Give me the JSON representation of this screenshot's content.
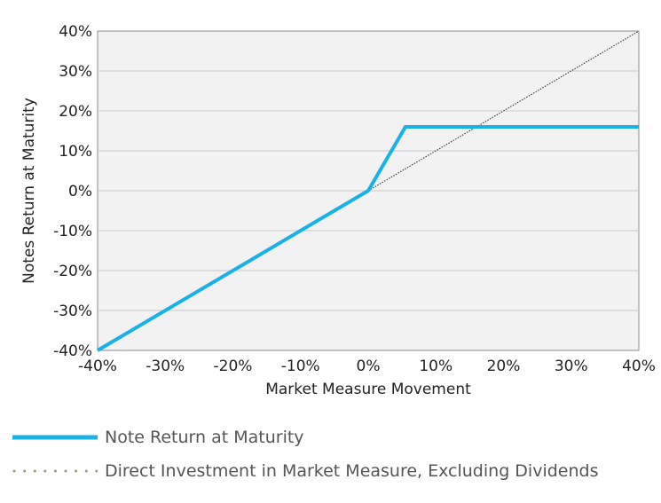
{
  "chart_data": {
    "type": "line",
    "xlabel": "Market Measure Movement",
    "ylabel": "Notes Return at Maturity",
    "xlim": [
      -40,
      40
    ],
    "ylim": [
      -40,
      40
    ],
    "x_ticks": [
      "-40%",
      "-30%",
      "-20%",
      "-10%",
      "0%",
      "10%",
      "20%",
      "30%",
      "40%"
    ],
    "y_ticks": [
      "40%",
      "30%",
      "20%",
      "10%",
      "0%",
      "-10%",
      "-20%",
      "-30%",
      "-40%"
    ],
    "x_tick_values": [
      -40,
      -30,
      -20,
      -10,
      0,
      10,
      20,
      30,
      40
    ],
    "y_tick_values": [
      40,
      30,
      20,
      10,
      0,
      -10,
      -20,
      -30,
      -40
    ],
    "grid": "horizontal",
    "legend_position": "bottom",
    "series": [
      {
        "name": "Note Return at Maturity",
        "color": "#1ab0e8",
        "style": "solid",
        "x": [
          -40,
          0,
          5.5,
          40
        ],
        "y": [
          -40,
          0,
          16,
          16
        ]
      },
      {
        "name": "Direct Investment in Market Measure, Excluding Dividends",
        "color": "#333333",
        "legend_color": "#a59a86",
        "style": "dotted",
        "x": [
          0,
          40
        ],
        "y": [
          0,
          40
        ]
      }
    ]
  }
}
